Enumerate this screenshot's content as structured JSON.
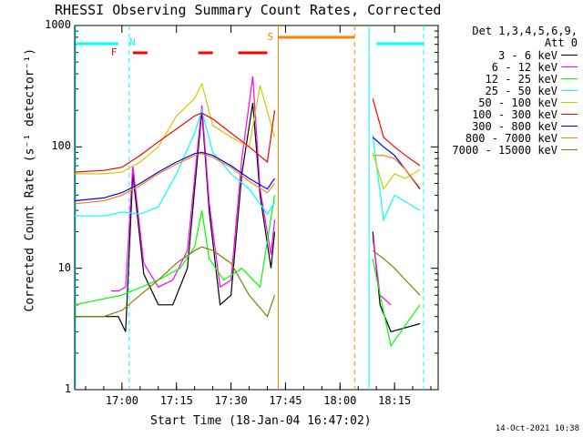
{
  "chart_data": {
    "type": "line",
    "title": "RHESSI Observing Summary Count Rates, Corrected",
    "xlabel": "Start Time (18-Jan-04 16:47:02)",
    "ylabel": "Corrected Count Rate (s⁻¹ detector⁻¹)",
    "yscale": "log",
    "ylim": [
      1,
      1000
    ],
    "y_ticks": [
      "1",
      "10",
      "100",
      "1000"
    ],
    "x_ticks": [
      "17:00",
      "17:15",
      "17:30",
      "17:45",
      "18:00",
      "18:15"
    ],
    "legend_header": [
      "Det 1,3,4,5,6,9,",
      "Att 0"
    ],
    "legend_position": "top-right",
    "markers": {
      "night_label": "N",
      "saa_label": "S",
      "flare_label": "F"
    },
    "series": [
      {
        "name": "3 - 6 keV",
        "color": "#000000",
        "x": [
          "16:47",
          "16:59",
          "17:01",
          "17:03",
          "17:06",
          "17:10",
          "17:14",
          "17:18",
          "17:22",
          "17:24",
          "17:27",
          "17:30",
          "17:33",
          "17:36",
          "17:38",
          "17:41",
          "17:42",
          "18:09",
          "18:11",
          "18:14",
          "18:22"
        ],
        "y": [
          4,
          4,
          3,
          60,
          9,
          5,
          5,
          10,
          200,
          30,
          5,
          6,
          60,
          230,
          40,
          10,
          20,
          20,
          5,
          3,
          3.5
        ]
      },
      {
        "name": "6 - 12 keV",
        "color": "#ff00ff",
        "x": [
          "16:57",
          "16:59",
          "17:01",
          "17:03",
          "17:06",
          "17:10",
          "17:14",
          "17:18",
          "17:22",
          "17:24",
          "17:27",
          "17:30",
          "17:33",
          "17:36",
          "17:38",
          "17:41",
          "17:42",
          "18:09",
          "18:11",
          "18:14"
        ],
        "y": [
          6.5,
          6.5,
          7,
          70,
          11,
          7,
          8,
          14,
          220,
          35,
          7,
          8,
          80,
          380,
          45,
          13,
          25,
          18,
          6,
          5
        ]
      },
      {
        "name": "12 - 25 keV",
        "color": "#00ff00",
        "x": [
          "16:47",
          "17:00",
          "17:10",
          "17:16",
          "17:20",
          "17:22",
          "17:24",
          "17:28",
          "17:33",
          "17:38",
          "17:42",
          "18:09",
          "18:11",
          "18:14",
          "18:22"
        ],
        "y": [
          5,
          6,
          8,
          10,
          15,
          30,
          12,
          8,
          10,
          7,
          40,
          12,
          6,
          2.3,
          5
        ]
      },
      {
        "name": "25 - 50 keV",
        "color": "#00ffff",
        "x": [
          "16:47",
          "16:55",
          "17:00",
          "17:05",
          "17:10",
          "17:15",
          "17:20",
          "17:22",
          "17:25",
          "17:30",
          "17:35",
          "17:40",
          "17:42",
          "18:09",
          "18:12",
          "18:15",
          "18:22"
        ],
        "y": [
          27,
          27,
          29,
          28,
          32,
          60,
          130,
          200,
          90,
          60,
          45,
          28,
          35,
          125,
          25,
          40,
          30
        ]
      },
      {
        "name": "50 - 100 keV",
        "color": "#cccc00",
        "x": [
          "16:47",
          "16:55",
          "17:00",
          "17:05",
          "17:10",
          "17:15",
          "17:20",
          "17:22",
          "17:25",
          "17:30",
          "17:35",
          "17:38",
          "17:42",
          "18:09",
          "18:12",
          "18:15",
          "18:18",
          "18:22"
        ],
        "y": [
          60,
          60,
          62,
          75,
          100,
          180,
          250,
          330,
          150,
          120,
          100,
          320,
          120,
          90,
          45,
          60,
          55,
          65
        ]
      },
      {
        "name": "100 - 300 keV",
        "color": "#ff0000",
        "x": [
          "16:47",
          "16:55",
          "17:00",
          "17:05",
          "17:10",
          "17:15",
          "17:20",
          "17:22",
          "17:25",
          "17:30",
          "17:35",
          "17:40",
          "17:42",
          "18:09",
          "18:12",
          "18:15",
          "18:18",
          "18:22"
        ],
        "y": [
          62,
          64,
          68,
          85,
          110,
          140,
          180,
          190,
          170,
          130,
          100,
          75,
          200,
          250,
          120,
          100,
          85,
          70
        ]
      },
      {
        "name": "300 - 800 keV",
        "color": "#0000ff",
        "x": [
          "16:47",
          "16:55",
          "17:00",
          "17:05",
          "17:10",
          "17:15",
          "17:20",
          "17:22",
          "17:25",
          "17:30",
          "17:35",
          "17:40",
          "17:42",
          "18:09",
          "18:12",
          "18:15",
          "18:18",
          "18:22"
        ],
        "y": [
          36,
          38,
          42,
          50,
          62,
          75,
          88,
          90,
          85,
          70,
          55,
          45,
          55,
          120,
          100,
          85,
          65,
          45
        ]
      },
      {
        "name": "800 - 7000 keV",
        "color": "#ff8000",
        "x": [
          "16:47",
          "16:55",
          "17:00",
          "17:05",
          "17:10",
          "17:15",
          "17:20",
          "17:22",
          "17:25",
          "17:30",
          "17:35",
          "17:40",
          "17:42",
          "18:09",
          "18:12",
          "18:15",
          "18:18",
          "18:22"
        ],
        "y": [
          34,
          36,
          40,
          48,
          60,
          72,
          85,
          88,
          82,
          68,
          52,
          42,
          50,
          85,
          85,
          80,
          65,
          46
        ]
      },
      {
        "name": "7000 - 15000 keV",
        "color": "#808000",
        "x": [
          "16:47",
          "16:55",
          "17:00",
          "17:05",
          "17:10",
          "17:15",
          "17:20",
          "17:22",
          "17:25",
          "17:30",
          "17:35",
          "17:40",
          "17:42",
          "18:09",
          "18:12",
          "18:15",
          "18:18",
          "18:22"
        ],
        "y": [
          4,
          4,
          4.5,
          6,
          8,
          11,
          14,
          15,
          14,
          11,
          6,
          4,
          6,
          14,
          12,
          10,
          8,
          6
        ]
      }
    ]
  },
  "labels": {
    "stamp": "14-Oct-2021 10:38"
  }
}
